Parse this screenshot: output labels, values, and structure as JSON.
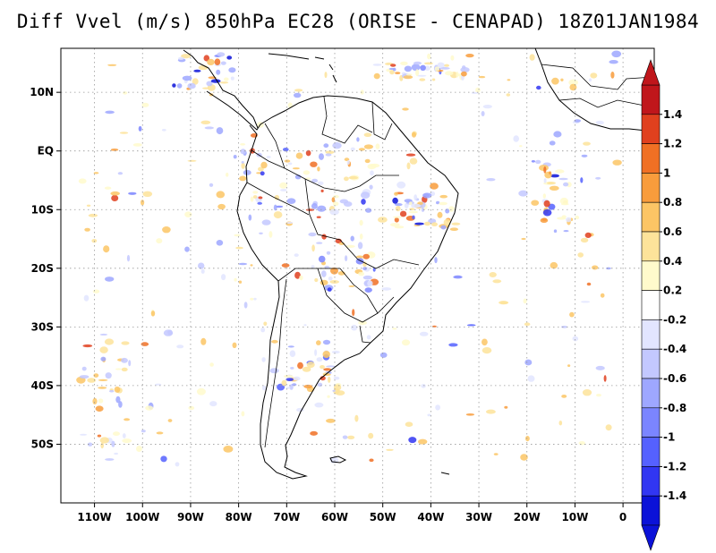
{
  "title": "Diff Vvel (m/s) 850hPa EC28 (ORISE - CENAPAD) 18Z01JAN1984",
  "map": {
    "lat_labels": [
      "10N",
      "EQ",
      "10S",
      "20S",
      "30S",
      "40S",
      "50S"
    ],
    "lat_values": [
      10,
      0,
      -10,
      -20,
      -30,
      -40,
      -50
    ],
    "lon_labels": [
      "110W",
      "100W",
      "90W",
      "80W",
      "70W",
      "60W",
      "50W",
      "40W",
      "30W",
      "20W",
      "10W",
      "0"
    ],
    "lon_values": [
      -110,
      -100,
      -90,
      -80,
      -70,
      -60,
      -50,
      -40,
      -30,
      -20,
      -10,
      0
    ],
    "lon_range": [
      -117,
      6.5
    ],
    "lat_range": [
      -60,
      17.5
    ],
    "grid": "dotted"
  },
  "colorbar": {
    "labels": [
      "1.4",
      "1.2",
      "1",
      "0.8",
      "0.6",
      "0.4",
      "0.2",
      "-0.2",
      "-0.4",
      "-0.6",
      "-0.8",
      "-1",
      "-1.2",
      "-1.4"
    ],
    "colors": [
      "#c0161b",
      "#e0401e",
      "#f07024",
      "#f89c3c",
      "#fcc565",
      "#fde39a",
      "#fffacc",
      "#ffffff",
      "#e2e5ff",
      "#c3c8ff",
      "#9ea7ff",
      "#7b85ff",
      "#5561ff",
      "#3136f2",
      "#0b12d8"
    ],
    "extend_top_color": "#c0161b",
    "extend_bottom_color": "#0b12d8"
  }
}
